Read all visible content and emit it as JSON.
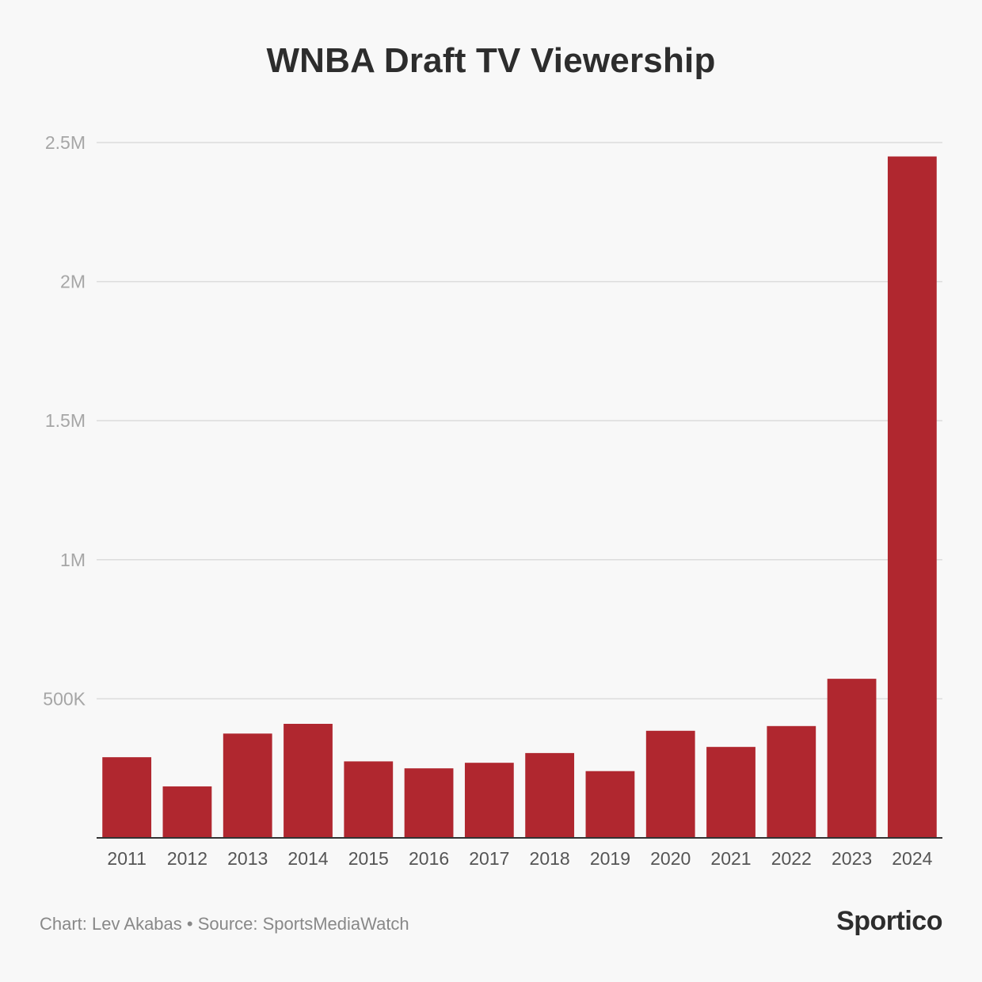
{
  "chart_data": {
    "type": "bar",
    "title": "WNBA Draft TV Viewership",
    "categories": [
      "2011",
      "2012",
      "2013",
      "2014",
      "2015",
      "2016",
      "2017",
      "2018",
      "2019",
      "2020",
      "2021",
      "2022",
      "2023",
      "2024"
    ],
    "values": [
      290000,
      185000,
      375000,
      410000,
      275000,
      250000,
      270000,
      305000,
      240000,
      385000,
      327000,
      402000,
      572000,
      2450000
    ],
    "xlabel": "",
    "ylabel": "",
    "ylim": [
      0,
      2500000
    ],
    "yticks": [
      {
        "value": 500000,
        "label": "500K"
      },
      {
        "value": 1000000,
        "label": "1M"
      },
      {
        "value": 1500000,
        "label": "1.5M"
      },
      {
        "value": 2000000,
        "label": "2M"
      },
      {
        "value": 2500000,
        "label": "2.5M"
      }
    ],
    "grid": true,
    "bar_color": "#b0272f"
  },
  "footer": {
    "source": "Chart: Lev Akabas • Source: SportsMediaWatch",
    "logo": "Sportico"
  }
}
